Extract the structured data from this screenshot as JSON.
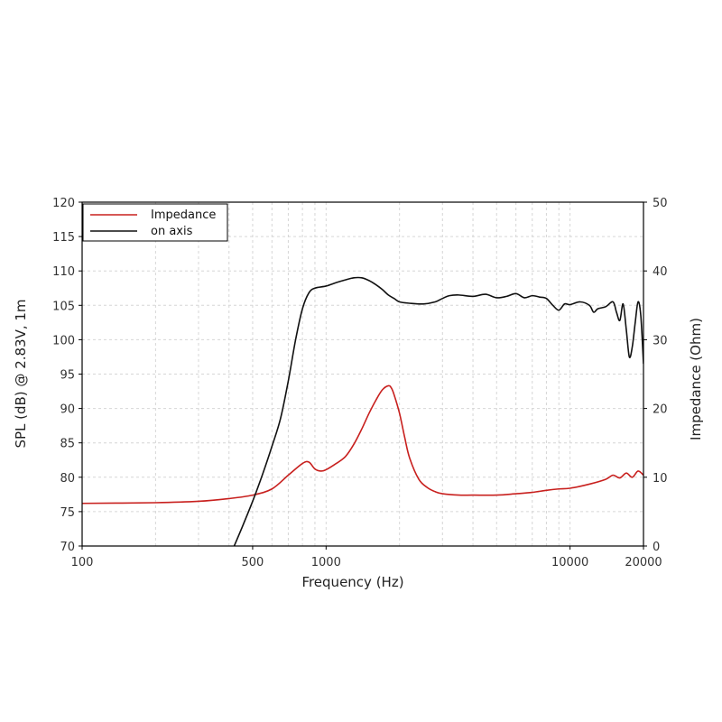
{
  "chart_data": {
    "type": "line",
    "xlabel": "Frequency (Hz)",
    "ylabel_left": "SPL (dB) @ 2.83V, 1m",
    "ylabel_right": "Impedance (Ohm)",
    "x_scale": "log",
    "xlim": [
      100,
      20000
    ],
    "ylim_left": [
      70,
      120
    ],
    "ylim_right": [
      0,
      50
    ],
    "x_tick_labels": [
      "100",
      "500",
      "1000",
      "10000",
      "20000"
    ],
    "x_tick_values": [
      100,
      500,
      1000,
      10000,
      20000
    ],
    "y_left_ticks": [
      70,
      75,
      80,
      85,
      90,
      95,
      100,
      105,
      110,
      115,
      120
    ],
    "y_right_ticks": [
      0,
      10,
      20,
      30,
      40,
      50
    ],
    "grid": true,
    "legend_position": "top-left",
    "colors": {
      "impedance": "#c8201e",
      "on_axis": "#111111"
    },
    "series": [
      {
        "name": "Impedance",
        "axis": "right",
        "x": [
          100,
          200,
          300,
          400,
          500,
          600,
          700,
          800,
          850,
          900,
          950,
          1000,
          1100,
          1200,
          1300,
          1400,
          1500,
          1600,
          1700,
          1800,
          1850,
          1900,
          2000,
          2100,
          2200,
          2400,
          2600,
          2800,
          3000,
          3500,
          4000,
          5000,
          6000,
          7000,
          8000,
          9000,
          10000,
          12000,
          14000,
          15000,
          16000,
          17000,
          18000,
          19000,
          20000
        ],
        "values": [
          6.2,
          6.3,
          6.5,
          6.9,
          7.4,
          8.3,
          10.3,
          12.0,
          12.2,
          11.2,
          10.9,
          11.1,
          12.0,
          13.0,
          14.8,
          17.0,
          19.3,
          21.2,
          22.7,
          23.3,
          23.0,
          22.0,
          19.3,
          15.8,
          12.8,
          9.7,
          8.5,
          7.9,
          7.6,
          7.4,
          7.4,
          7.4,
          7.6,
          7.8,
          8.1,
          8.3,
          8.4,
          9.0,
          9.7,
          10.3,
          9.9,
          10.6,
          10.0,
          10.9,
          10.3
        ]
      },
      {
        "name": "on axis",
        "axis": "left",
        "x": [
          420,
          450,
          500,
          550,
          600,
          650,
          700,
          750,
          800,
          850,
          900,
          1000,
          1100,
          1200,
          1300,
          1400,
          1500,
          1600,
          1700,
          1800,
          1900,
          2000,
          2200,
          2500,
          2800,
          3000,
          3200,
          3500,
          4000,
          4500,
          5000,
          5500,
          6000,
          6500,
          7000,
          7500,
          8000,
          8500,
          9000,
          9500,
          10000,
          11000,
          12000,
          12500,
          13000,
          14000,
          15000,
          15500,
          16000,
          16500,
          17000,
          17500,
          18000,
          18500,
          19000,
          19500,
          20000
        ],
        "values": [
          70.0,
          72.5,
          76.5,
          80.5,
          84.5,
          88.5,
          94.0,
          100.0,
          104.5,
          106.8,
          107.5,
          107.8,
          108.3,
          108.7,
          109.0,
          109.0,
          108.6,
          108.0,
          107.3,
          106.5,
          106.0,
          105.5,
          105.3,
          105.2,
          105.5,
          106.0,
          106.4,
          106.5,
          106.3,
          106.6,
          106.1,
          106.3,
          106.7,
          106.1,
          106.4,
          106.2,
          106.0,
          105.0,
          104.3,
          105.2,
          105.1,
          105.5,
          105.0,
          104.0,
          104.5,
          104.8,
          105.5,
          104.0,
          102.8,
          105.2,
          101.5,
          97.5,
          99.0,
          102.5,
          105.5,
          103.5,
          96.5
        ]
      }
    ]
  }
}
